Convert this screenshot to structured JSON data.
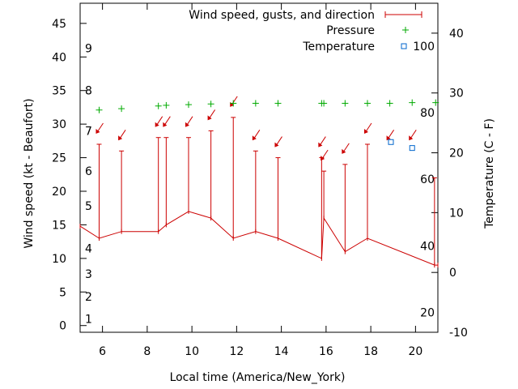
{
  "chart_data": {
    "type": "line",
    "xlabel": "Local time (America/New_York)",
    "ylabel": "Wind speed (kt - Beaufort)",
    "y2label": "Temperature (C - F)",
    "xlim": [
      5,
      21
    ],
    "ylim": [
      -1,
      48
    ],
    "y2lim": [
      -10,
      45
    ],
    "x_ticks": [
      6,
      8,
      10,
      12,
      14,
      16,
      18,
      20
    ],
    "y_ticks": [
      0,
      5,
      10,
      15,
      20,
      25,
      30,
      35,
      40,
      45
    ],
    "y2_ticks": [
      -10,
      0,
      10,
      20,
      30,
      40
    ],
    "beaufort_labels": [
      {
        "label": "1",
        "y": 1
      },
      {
        "label": "2",
        "y": 4.3
      },
      {
        "label": "3",
        "y": 7.7
      },
      {
        "label": "4",
        "y": 11.5
      },
      {
        "label": "5",
        "y": 17.8
      },
      {
        "label": "6",
        "y": 23
      },
      {
        "label": "7",
        "y": 29
      },
      {
        "label": "8",
        "y": 35
      },
      {
        "label": "9",
        "y": 41.3
      }
    ],
    "fahrenheit_labels": [
      {
        "label": "20",
        "y2": -6.7
      },
      {
        "label": "40",
        "y2": 4.4
      },
      {
        "label": "60",
        "y2": 15.6
      },
      {
        "label": "80",
        "y2": 26.7
      },
      {
        "label": "100",
        "y2": 37.8
      }
    ],
    "legend": {
      "position": "top-right",
      "entries": [
        "Wind speed, gusts, and direction",
        "Pressure",
        "Temperature"
      ]
    },
    "grid": false,
    "series": [
      {
        "name": "Wind speed, gusts, and direction",
        "color": "#cc0000",
        "x": [
          5,
          5.85,
          6.85,
          8.5,
          8.85,
          9.85,
          10.85,
          11.85,
          12.85,
          13.85,
          15.8,
          15.9,
          16.85,
          17.85,
          20.85,
          21
        ],
        "y": [
          14.8,
          13,
          14,
          14,
          15,
          17,
          16,
          13,
          14,
          13,
          10,
          16,
          11,
          13,
          9,
          9
        ],
        "gust": [
          null,
          27,
          26,
          28,
          28,
          28,
          29,
          31,
          26,
          25,
          25,
          23,
          24,
          27,
          22,
          null
        ],
        "direction_arrows_x": [
          5.85,
          6.85,
          8.5,
          8.85,
          9.85,
          10.85,
          11.85,
          12.85,
          13.85,
          15.8,
          15.9,
          16.85,
          17.85,
          18.85,
          19.85
        ]
      },
      {
        "name": "Pressure",
        "color": "#00aa00",
        "x": [
          5.85,
          6.85,
          8.5,
          8.85,
          9.85,
          10.85,
          11.85,
          12.85,
          13.85,
          15.8,
          15.9,
          16.85,
          17.85,
          18.85,
          19.85,
          20.9
        ],
        "y": [
          32.1,
          32.3,
          32.7,
          32.8,
          32.9,
          33.0,
          33.1,
          33.1,
          33.1,
          33.1,
          33.1,
          33.1,
          33.1,
          33.1,
          33.2,
          33.2
        ]
      },
      {
        "name": "Temperature",
        "color": "#0066cc",
        "x": [
          18.9,
          19.85
        ],
        "y2": [
          21.8,
          20.8
        ]
      }
    ]
  }
}
